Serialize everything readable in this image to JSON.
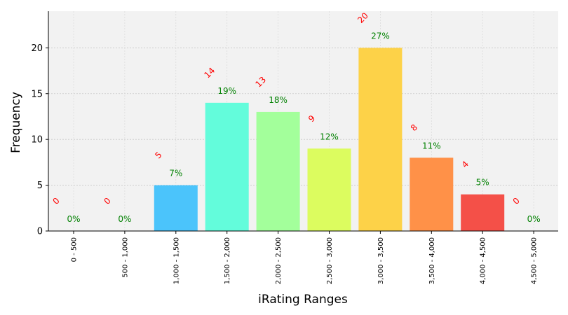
{
  "chart_data": {
    "type": "bar",
    "title": "",
    "xlabel": "iRating Ranges",
    "ylabel": "Frequency",
    "ylim": [
      0,
      24
    ],
    "yticks": [
      0,
      5,
      10,
      15,
      20
    ],
    "grid": true,
    "categories": [
      "0 - 500",
      "500 - 1,000",
      "1,000 - 1,500",
      "1,500 - 2,000",
      "2,000 - 2,500",
      "2,500 - 3,000",
      "3,000 - 3,500",
      "3,500 - 4,000",
      "4,000 - 4,500",
      "4,500 - 5,000"
    ],
    "values": [
      0,
      0,
      5,
      14,
      13,
      9,
      20,
      8,
      4,
      0
    ],
    "count_labels": [
      "0",
      "0",
      "5",
      "14",
      "13",
      "9",
      "20",
      "8",
      "4",
      "0"
    ],
    "percent_labels": [
      "0%",
      "0%",
      "7%",
      "19%",
      "18%",
      "12%",
      "27%",
      "11%",
      "5%",
      "0%"
    ],
    "colors": [
      "#4a3cf0",
      "#3d7ff5",
      "#4bc4fb",
      "#63fcdb",
      "#a3ff9b",
      "#dcfc5f",
      "#fdd248",
      "#ff9148",
      "#f45048",
      "#a6131a"
    ]
  }
}
